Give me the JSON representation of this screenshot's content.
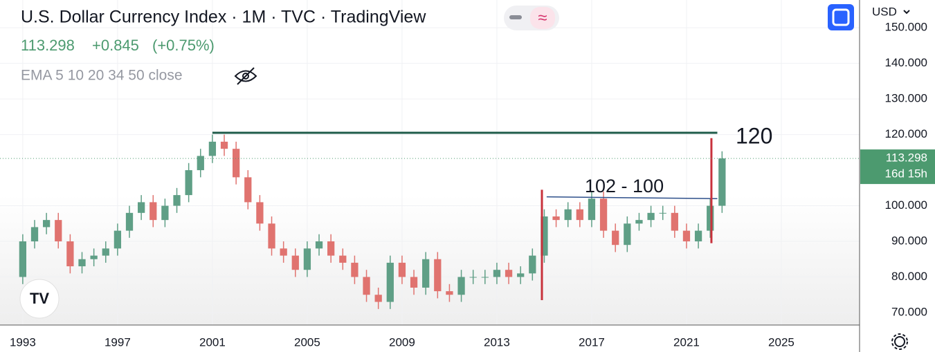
{
  "header": {
    "title": "U.S. Dollar Currency Index · 1M · TVC · TradingView",
    "last": 113.298,
    "change": "+0.845",
    "change_percent": "(+0.75%)",
    "indicator": "EMA 5 10 20 34 50 close",
    "currency": "USD"
  },
  "chart_data": {
    "type": "candlestick",
    "x": [
      1993,
      1993.5,
      1994,
      1994.5,
      1995,
      1995.5,
      1996,
      1996.5,
      1997,
      1997.5,
      1998,
      1998.5,
      1999,
      1999.5,
      2000,
      2000.5,
      2001,
      2001.5,
      2002,
      2002.5,
      2003,
      2003.5,
      2004,
      2004.5,
      2005,
      2005.5,
      2006,
      2006.5,
      2007,
      2007.5,
      2008,
      2008.5,
      2009,
      2009.5,
      2010,
      2010.5,
      2011,
      2011.5,
      2012,
      2012.5,
      2013,
      2013.5,
      2014,
      2014.5,
      2015,
      2015.5,
      2016,
      2016.5,
      2017,
      2017.5,
      2018,
      2018.5,
      2019,
      2019.5,
      2020,
      2020.5,
      2021,
      2021.5,
      2022,
      2022.5
    ],
    "open": [
      80,
      90,
      94,
      96,
      90,
      83,
      85,
      86,
      88,
      93,
      98,
      101,
      96,
      100,
      103,
      110,
      114,
      118,
      116,
      108,
      101,
      95,
      88,
      86,
      82,
      88,
      90,
      86,
      84,
      80,
      75,
      73,
      84,
      80,
      77,
      85,
      76,
      75,
      80,
      80,
      80,
      82,
      80,
      81,
      86,
      97,
      96,
      99,
      96,
      102,
      93,
      89,
      95,
      96,
      98,
      98,
      93,
      90,
      93,
      100
    ],
    "high": [
      92,
      96,
      98,
      98,
      92,
      87,
      88,
      90,
      95,
      100,
      103,
      103,
      102,
      105,
      112,
      116,
      120,
      120,
      118,
      110,
      103,
      97,
      90,
      88,
      90,
      92,
      92,
      88,
      86,
      82,
      77,
      86,
      86,
      82,
      87,
      87,
      78,
      82,
      82,
      82,
      84,
      84,
      83,
      88,
      99,
      99,
      101,
      101,
      104,
      104,
      95,
      97,
      98,
      100,
      100,
      100,
      95,
      95,
      102,
      115.3
    ],
    "low": [
      78,
      88,
      92,
      88,
      81,
      81,
      83,
      84,
      86,
      91,
      96,
      94,
      94,
      98,
      101,
      108,
      112,
      114,
      106,
      99,
      93,
      86,
      84,
      80,
      80,
      86,
      84,
      82,
      78,
      73,
      71,
      71,
      78,
      75,
      75,
      74,
      73,
      73,
      78,
      78,
      78,
      78,
      78,
      79,
      84,
      94,
      94,
      94,
      94,
      91,
      87,
      87,
      93,
      94,
      96,
      91,
      88,
      88,
      91,
      98
    ],
    "close": [
      90,
      94,
      96,
      90,
      83,
      85,
      86,
      88,
      93,
      98,
      101,
      96,
      100,
      103,
      110,
      114,
      118,
      116,
      108,
      101,
      95,
      88,
      86,
      82,
      88,
      90,
      86,
      84,
      80,
      75,
      73,
      84,
      80,
      77,
      85,
      76,
      75,
      80,
      80,
      80,
      82,
      80,
      81,
      86,
      97,
      96,
      99,
      96,
      102,
      93,
      89,
      95,
      96,
      98,
      98,
      93,
      90,
      93,
      100,
      113.298
    ],
    "up_color": "#5f9f86",
    "down_color": "#e0736f",
    "xlim": [
      1992.04,
      2028.3
    ],
    "xticks": [
      1993,
      1997,
      2001,
      2005,
      2009,
      2013,
      2017,
      2021,
      2025
    ],
    "ylim": [
      66.5,
      157.8
    ],
    "yticks": [
      {
        "value": 70,
        "label": "70.000"
      },
      {
        "value": 80,
        "label": "80.000"
      },
      {
        "value": 90,
        "label": "90.000"
      },
      {
        "value": 100,
        "label": "100.000"
      },
      {
        "value": 120,
        "label": "120.000"
      },
      {
        "value": 130,
        "label": "130.000"
      },
      {
        "value": 140,
        "label": "140.000"
      },
      {
        "value": 150,
        "label": "150.000"
      }
    ],
    "grid": true,
    "last_price": 113.298,
    "countdown": "16d 15h",
    "last_color": "#4c9a6f",
    "drawings": [
      {
        "color": "#1f5c4a",
        "x": [
          2001,
          2022.3
        ],
        "y": [
          120.5,
          120.5
        ]
      },
      {
        "color": "#2d4f8a",
        "x": [
          2015.1,
          2022.3
        ],
        "y": [
          102.5,
          102
        ]
      },
      {
        "color": "#c8323c",
        "x": [
          2014.9,
          2014.9
        ],
        "y": [
          73.5,
          104.5
        ]
      },
      {
        "color": "#c8323c",
        "x": [
          2022.05,
          2022.05
        ],
        "y": [
          89.5,
          119
        ]
      }
    ],
    "annotations": [
      "120",
      "102 - 100"
    ]
  }
}
